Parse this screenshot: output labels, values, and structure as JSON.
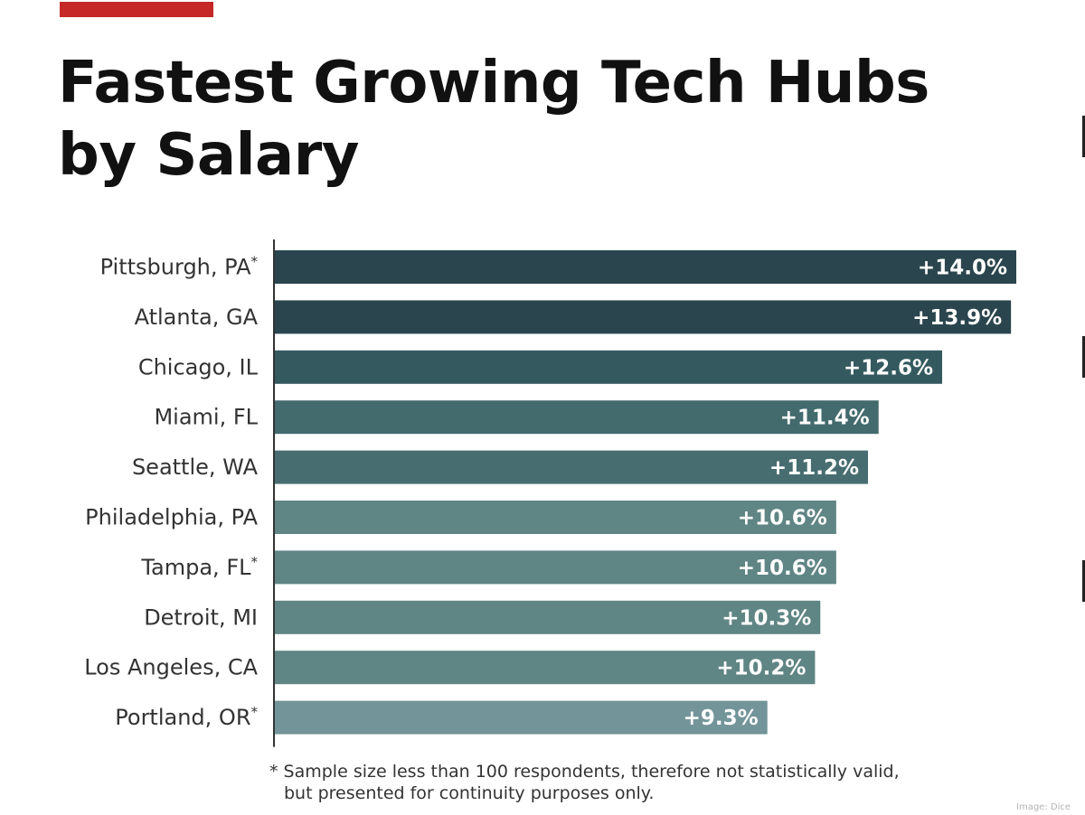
{
  "colors": {
    "accent": "#c62828",
    "title": "#111111",
    "axis": "#333333",
    "label": "#333333",
    "value_text": "#ffffff"
  },
  "title": "Fastest Growing Tech Hubs by Salary",
  "footnote": {
    "line1": "* Sample size less than 100 respondents, therefore not statistically valid,",
    "line2": "but presented for continuity purposes only."
  },
  "credit": "Image: Dice",
  "chart_data": {
    "type": "bar",
    "orientation": "horizontal",
    "categories": [
      "Pittsburgh, PA*",
      "Atlanta, GA",
      "Chicago, IL",
      "Miami, FL",
      "Seattle, WA",
      "Philadelphia, PA",
      "Tampa, FL*",
      "Detroit, MI",
      "Los Angeles, CA",
      "Portland, OR*"
    ],
    "values": [
      14.0,
      13.9,
      12.6,
      11.4,
      11.2,
      10.6,
      10.6,
      10.3,
      10.2,
      9.3
    ],
    "value_labels": [
      "+14.0%",
      "+13.9%",
      "+12.6%",
      "+11.4%",
      "+11.2%",
      "+10.6%",
      "+10.6%",
      "+10.3%",
      "+10.2%",
      "+9.3%"
    ],
    "bar_colors": [
      "#2a454d",
      "#2a454d",
      "#345a5f",
      "#436a6d",
      "#476d70",
      "#5f8584",
      "#5f8584",
      "#5f8584",
      "#5f8584",
      "#73959a"
    ],
    "xlim": [
      0,
      14.0
    ],
    "grid": false,
    "legend": "none"
  }
}
